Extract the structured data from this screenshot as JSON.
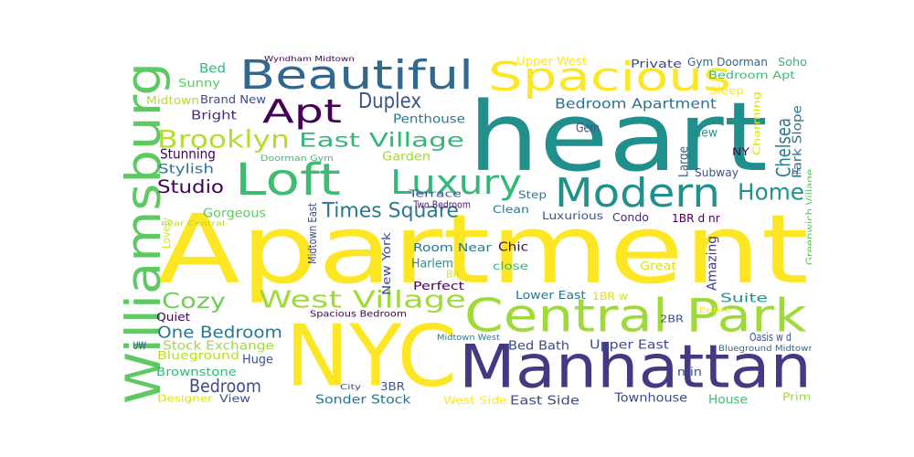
{
  "wordcloud": {
    "words": [
      {
        "text": "Apartment",
        "color": "#fde725"
      },
      {
        "text": "heart",
        "color": "#21908d"
      },
      {
        "text": "NYC",
        "color": "#fde725"
      },
      {
        "text": "Manhattan",
        "color": "#443983"
      },
      {
        "text": "Central Park",
        "color": "#a0da39"
      },
      {
        "text": "Williamsburg",
        "color": "#5ec962"
      },
      {
        "text": "Beautiful",
        "color": "#31688e"
      },
      {
        "text": "Spacious",
        "color": "#fde725"
      },
      {
        "text": "Loft",
        "color": "#3fbc73"
      },
      {
        "text": "Apt",
        "color": "#440154"
      },
      {
        "text": "Modern",
        "color": "#21918c"
      },
      {
        "text": "Luxury",
        "color": "#35b779"
      },
      {
        "text": "West Village",
        "color": "#a0da39"
      },
      {
        "text": "Brooklyn",
        "color": "#b5de2b"
      },
      {
        "text": "East Village",
        "color": "#35b779"
      },
      {
        "text": "Home",
        "color": "#21918c"
      },
      {
        "text": "Chelsea",
        "color": "#2a788e"
      },
      {
        "text": "Times Square",
        "color": "#2a788e"
      },
      {
        "text": "Duplex",
        "color": "#3b528b"
      },
      {
        "text": "Cozy",
        "color": "#6ece58"
      },
      {
        "text": "Studio",
        "color": "#440154"
      },
      {
        "text": "Bedroom",
        "color": "#3e4a89"
      },
      {
        "text": "One Bedroom",
        "color": "#2a788e"
      },
      {
        "text": "Bedroom Apartment",
        "color": "#2c728e"
      },
      {
        "text": "Penthouse",
        "color": "#2a788e"
      },
      {
        "text": "Brand New",
        "color": "#3e4a89"
      },
      {
        "text": "Midtown",
        "color": "#b5de2b"
      },
      {
        "text": "Stunning",
        "color": "#440154"
      },
      {
        "text": "Stylish",
        "color": "#2c728e"
      },
      {
        "text": "Bright",
        "color": "#482878"
      },
      {
        "text": "Sunny",
        "color": "#5ec962"
      },
      {
        "text": "Bed",
        "color": "#35b779"
      },
      {
        "text": "Gorgeous",
        "color": "#5ec962"
      },
      {
        "text": "Garden",
        "color": "#a0da39"
      },
      {
        "text": "Terrace",
        "color": "#3b528b"
      },
      {
        "text": "Two Bedroom",
        "color": "#481a6c"
      },
      {
        "text": "Upper West",
        "color": "#fde725"
      },
      {
        "text": "Private",
        "color": "#3e4a89"
      },
      {
        "text": "Gym Doorman",
        "color": "#31688e"
      },
      {
        "text": "Soho",
        "color": "#35b779"
      },
      {
        "text": "Bedroom Apt",
        "color": "#3fbc73"
      },
      {
        "text": "Sleep",
        "color": "#fde725"
      },
      {
        "text": "Charming",
        "color": "#d8e219"
      },
      {
        "text": "Park Slope",
        "color": "#2c728e"
      },
      {
        "text": "Greenwich Village",
        "color": "#5ec962"
      },
      {
        "text": "Gem",
        "color": "#3b528b"
      },
      {
        "text": "Large",
        "color": "#31688e"
      },
      {
        "text": "New",
        "color": "#21918c"
      },
      {
        "text": "NY",
        "color": "#440154"
      },
      {
        "text": "LE",
        "color": "#31688e"
      },
      {
        "text": "Subway",
        "color": "#3b528b"
      },
      {
        "text": "Step",
        "color": "#2a788e"
      },
      {
        "text": "Clean",
        "color": "#2a788e"
      },
      {
        "text": "Luxurious",
        "color": "#3b528b"
      },
      {
        "text": "Condo",
        "color": "#482878"
      },
      {
        "text": "1BR d nr",
        "color": "#440154"
      },
      {
        "text": "Midtown East",
        "color": "#3e4a89"
      },
      {
        "text": "New York",
        "color": "#3e4a89"
      },
      {
        "text": "Room Near",
        "color": "#2a788e"
      },
      {
        "text": "Harlem",
        "color": "#21918c"
      },
      {
        "text": "BR",
        "color": "#d8e219"
      },
      {
        "text": "Perfect",
        "color": "#440154"
      },
      {
        "text": "Chic",
        "color": "#440154"
      },
      {
        "text": "close",
        "color": "#35b779"
      },
      {
        "text": "Amazing",
        "color": "#443983"
      },
      {
        "text": "Great",
        "color": "#d8e219"
      },
      {
        "text": "Lower East",
        "color": "#2a788e"
      },
      {
        "text": "1BR w",
        "color": "#d8e219"
      },
      {
        "text": "2BR",
        "color": "#3e4a89"
      },
      {
        "text": "Suite",
        "color": "#21918c"
      },
      {
        "text": "Entire",
        "color": "#fde725"
      },
      {
        "text": "Oasis w d",
        "color": "#3b528b"
      },
      {
        "text": "Quiet",
        "color": "#440154"
      },
      {
        "text": "UW",
        "color": "#3b528b"
      },
      {
        "text": "Stock Exchange",
        "color": "#a0da39"
      },
      {
        "text": "Blueground",
        "color": "#b5de2b"
      },
      {
        "text": "Huge",
        "color": "#3b528b"
      },
      {
        "text": "Brownstone",
        "color": "#35b779"
      },
      {
        "text": "Designer",
        "color": "#d8e219"
      },
      {
        "text": "View",
        "color": "#3b528b"
      },
      {
        "text": "Sonder Stock",
        "color": "#2c728e"
      },
      {
        "text": "City",
        "color": "#3e4a89"
      },
      {
        "text": "3BR",
        "color": "#3b528b"
      },
      {
        "text": "West Side",
        "color": "#fde725"
      },
      {
        "text": "East Side",
        "color": "#3e4a89"
      },
      {
        "text": "Bed Bath",
        "color": "#3e4a89"
      },
      {
        "text": "Upper East",
        "color": "#3e4a89"
      },
      {
        "text": "Townhouse",
        "color": "#3e4a89"
      },
      {
        "text": "min",
        "color": "#3e4a89"
      },
      {
        "text": "House",
        "color": "#3fbc73"
      },
      {
        "text": "Prime",
        "color": "#a0da39"
      },
      {
        "text": "Lovely",
        "color": "#d8e219"
      },
      {
        "text": "Wyndham Midtown",
        "color": "#440154"
      },
      {
        "text": "Doorman Gym",
        "color": "#3fbc73"
      },
      {
        "text": "near Central",
        "color": "#b5de2b"
      },
      {
        "text": "Spacious Bedroom",
        "color": "#440154"
      },
      {
        "text": "Midtown West",
        "color": "#2a788e"
      },
      {
        "text": "Blueground Midtown",
        "color": "#31688e"
      }
    ]
  }
}
